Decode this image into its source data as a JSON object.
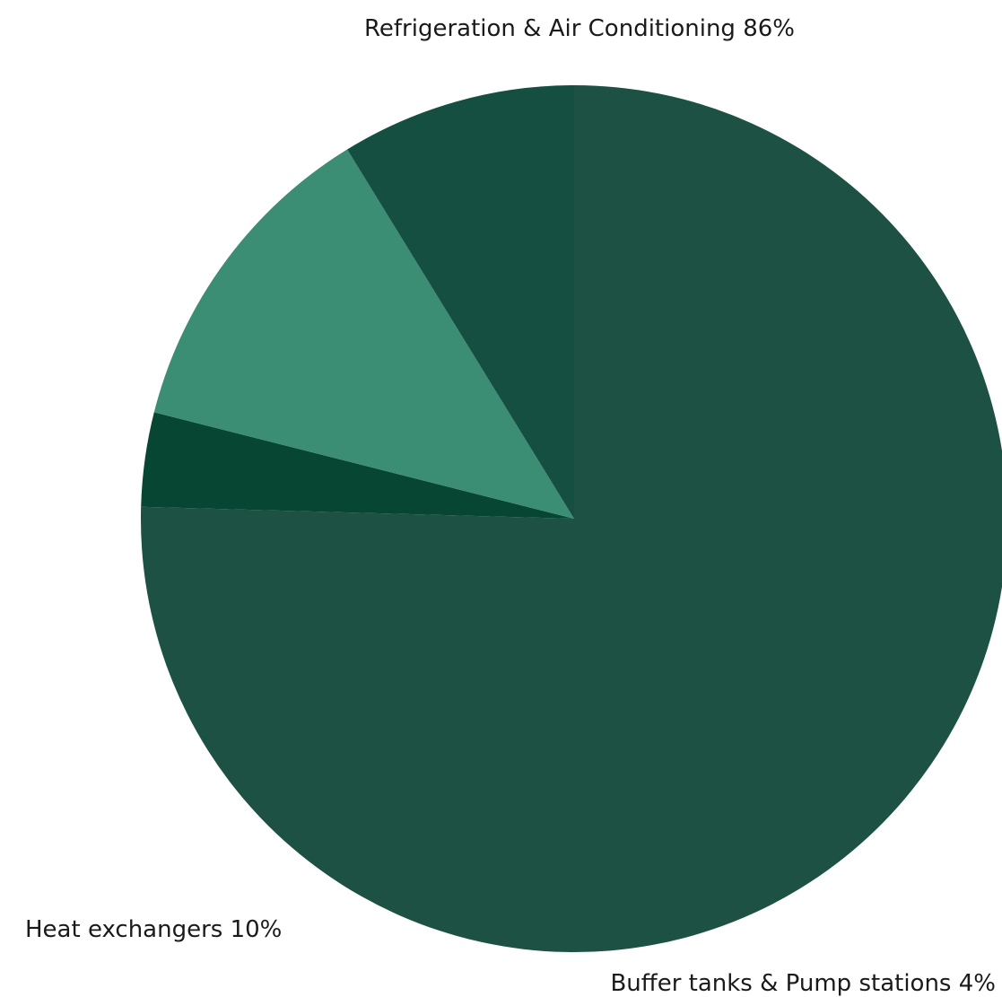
{
  "chart_data": {
    "type": "pie",
    "slices": [
      {
        "label": "Refrigeration & Air Conditioning 86%",
        "name": "Refrigeration & Air Conditioning",
        "value": 86,
        "color": "#1C5143"
      },
      {
        "label": "Buffer tanks & Pump stations 4%",
        "name": "Buffer tanks & Pump stations",
        "value": 4,
        "color": "#064632"
      },
      {
        "label": "",
        "name": "",
        "value": 14,
        "color": "#3B8D74"
      },
      {
        "label": "Heat exchangers 10%",
        "name": "Heat exchangers",
        "value": 10,
        "color": "#154F42"
      }
    ]
  }
}
